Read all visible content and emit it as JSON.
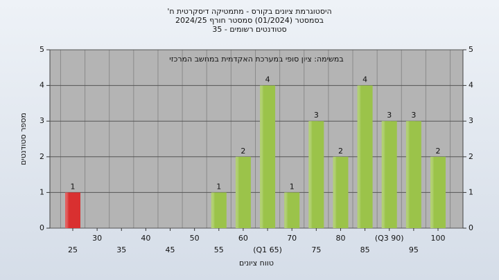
{
  "chart_data": {
    "type": "bar",
    "title": "היסטוגרמת ציונים בקורס - מתמטיקה דיסקרטית ח'",
    "subtitle": "בסמסטר  (01/2024)  סמסטר חורף 2024/25",
    "subtitle2": "סטודנטים רשומים - 35",
    "annotation": "במשימה: ציון סופי במערכת האקדמית במחשב המרכזי",
    "x_label": "טווח ציונים",
    "y_label": "מספר סטודנטים",
    "categories": [
      "25",
      "30",
      "35",
      "40",
      "45",
      "50",
      "55",
      "60",
      "(Q1 65)",
      "70",
      "75",
      "80",
      "85",
      "(Q3 90)",
      "95",
      "100"
    ],
    "values": [
      1,
      0,
      0,
      0,
      0,
      0,
      1,
      2,
      4,
      1,
      3,
      2,
      4,
      3,
      3,
      2
    ],
    "colors": [
      "#d93030",
      "#9bc34a",
      "#9bc34a",
      "#9bc34a",
      "#9bc34a",
      "#9bc34a",
      "#9bc34a",
      "#9bc34a",
      "#9bc34a",
      "#9bc34a",
      "#9bc34a",
      "#9bc34a",
      "#9bc34a",
      "#9bc34a",
      "#9bc34a",
      "#9bc34a"
    ],
    "ylim": [
      0,
      5
    ],
    "yticks": [
      0,
      1,
      2,
      3,
      4,
      5
    ],
    "grid": true
  }
}
